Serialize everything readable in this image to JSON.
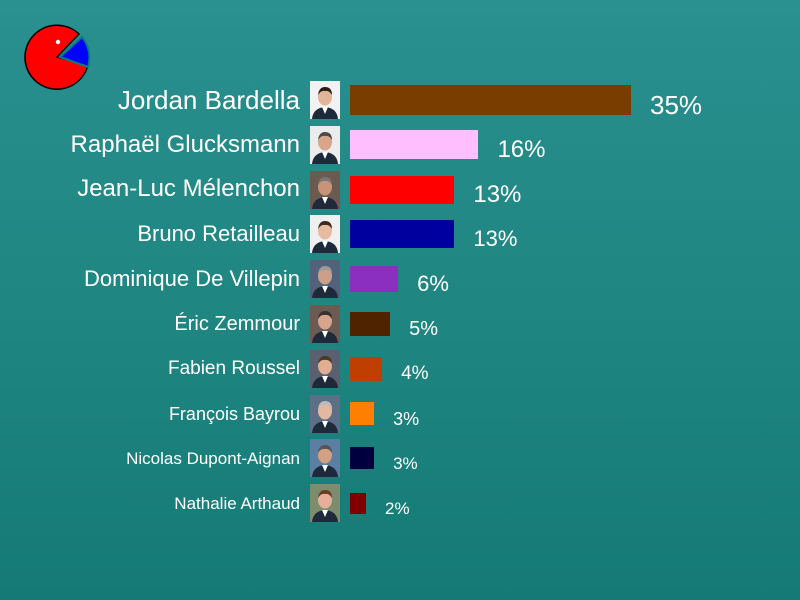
{
  "chart_data": {
    "type": "bar",
    "orientation": "horizontal",
    "categories": [
      "Jordan Bardella",
      "Raphaël Glucksmann",
      "Jean-Luc Mélenchon",
      "Bruno Retailleau",
      "Dominique De Villepin",
      "Éric Zemmour",
      "Fabien Roussel",
      "François Bayrou",
      "Nicolas Dupont-Aignan",
      "Nathalie Arthaud"
    ],
    "values": [
      35,
      16,
      13,
      13,
      6,
      5,
      4,
      3,
      3,
      2
    ],
    "value_labels": [
      "35%",
      "16%",
      "13%",
      "13%",
      "6%",
      "5%",
      "4%",
      "3%",
      "3%",
      "2%"
    ],
    "colors": [
      "#7a3d00",
      "#ffbfff",
      "#ff0000",
      "#00009f",
      "#8a2fbf",
      "#4f2300",
      "#bf3f00",
      "#ff8000",
      "#00003f",
      "#800000"
    ],
    "xlim": [
      0,
      35
    ],
    "grid": false,
    "legend": "none"
  },
  "logo": {
    "icon": "pacman-pie-logo-icon",
    "colors": {
      "pie": "#ff0000",
      "wedge": "#0000ff",
      "eye": "#ffffff"
    }
  },
  "photos": {
    "icon": "candidate-portrait-icon"
  }
}
